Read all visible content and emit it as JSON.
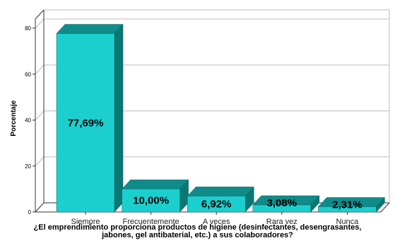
{
  "chart_data": {
    "type": "bar",
    "categories": [
      "Siempre",
      "Frecuentemente",
      "A veces",
      "Rara vez",
      "Nunca"
    ],
    "values": [
      77.69,
      10.0,
      6.92,
      3.08,
      2.31
    ],
    "data_labels": [
      "77,69%",
      "10,00%",
      "6,92%",
      "3,08%",
      "2,31%"
    ],
    "ylabel": "Porcentaje",
    "xlabel_line1": "¿El emprendimiento proporciona productos de higiene (desinfectantes, desengrasantes,",
    "xlabel_line2": "jabones, gel antibaterial, etc.) a sus colaboradores?",
    "yticks": [
      "0",
      "20",
      "40",
      "60",
      "80"
    ],
    "ylim": [
      0,
      80
    ],
    "grid": true,
    "bar_style": "3d",
    "colors": {
      "bar_front": "#1ccfcf",
      "bar_top": "#0f8c8a",
      "bar_side": "#0b7774",
      "bar_edge": "#0a5f5c",
      "grid": "#bdbdbd"
    }
  }
}
